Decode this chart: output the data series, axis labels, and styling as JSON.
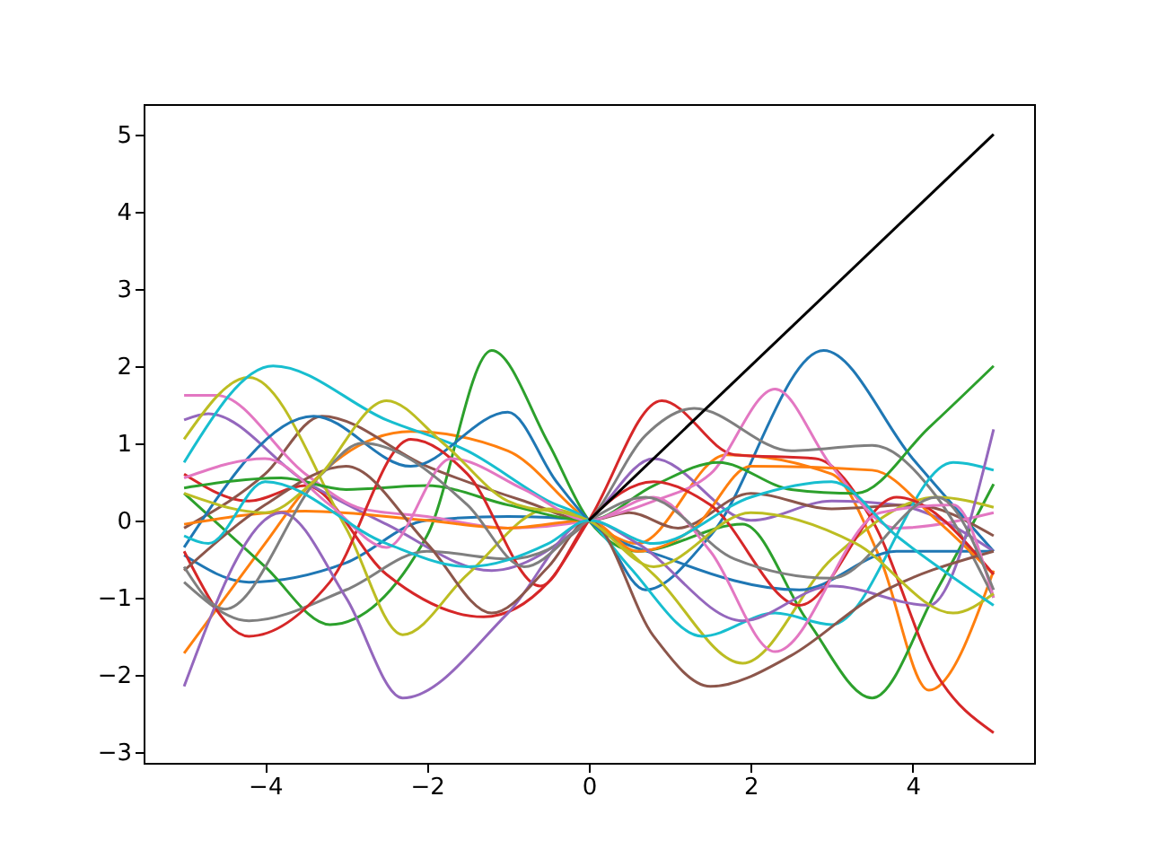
{
  "chart_data": {
    "type": "line",
    "xlim": [
      -5.5,
      5.5
    ],
    "ylim": [
      -3.14,
      5.39
    ],
    "xticks": [
      -4,
      -2,
      0,
      2,
      4
    ],
    "yticks": [
      -3,
      -2,
      -1,
      0,
      1,
      2,
      3,
      4,
      5
    ],
    "series": [
      {
        "color": "#1f77b4",
        "x": [
          -5,
          -4.2,
          -3,
          -2,
          -1,
          0,
          0.7,
          1.5,
          2.9,
          4,
          5
        ],
        "values": [
          -0.45,
          -0.8,
          -0.55,
          0,
          0.05,
          0,
          -0.9,
          -0.2,
          2.2,
          0.8,
          -0.4
        ]
      },
      {
        "color": "#ff7f0e",
        "x": [
          -5,
          -4,
          -3.5,
          -2.2,
          -1,
          0,
          0.6,
          1.7,
          3,
          3.6,
          4.2,
          5
        ],
        "values": [
          -1.72,
          -0.3,
          0.4,
          1.15,
          0.9,
          0,
          -0.3,
          0.85,
          0.6,
          -0.5,
          -2.2,
          -0.65
        ]
      },
      {
        "color": "#2ca02c",
        "x": [
          -5,
          -4,
          -3.2,
          -2,
          -1.2,
          -0.5,
          0,
          0.6,
          1.9,
          2.7,
          3.5,
          4.3,
          5
        ],
        "values": [
          0.35,
          -0.6,
          -1.35,
          -0.2,
          2.2,
          1,
          0,
          -0.4,
          -0.05,
          -1.3,
          -2.3,
          -0.9,
          0.47
        ]
      },
      {
        "color": "#d62728",
        "x": [
          -5,
          -4.2,
          -3.5,
          -2.5,
          -1.3,
          -0.5,
          0,
          0.9,
          1.8,
          2.8,
          3.5,
          4.3,
          5
        ],
        "values": [
          0.6,
          0.25,
          0.45,
          -0.7,
          -1.25,
          -0.8,
          0,
          1.55,
          0.85,
          0.8,
          0,
          -2,
          -2.75
        ]
      },
      {
        "color": "#9467bd",
        "x": [
          -5,
          -4.7,
          -3.5,
          -2.5,
          -1.2,
          0,
          0.8,
          2,
          3,
          3.8,
          5
        ],
        "values": [
          1.3,
          1.38,
          0.5,
          -0.05,
          -0.65,
          0,
          0.8,
          0,
          0.25,
          0.2,
          -0.4
        ]
      },
      {
        "color": "#8c564b",
        "x": [
          -5,
          -4,
          -3.3,
          -2,
          -0.8,
          0,
          0.5,
          1.1,
          2,
          3,
          4,
          5
        ],
        "values": [
          -0.1,
          0.6,
          1.35,
          0.7,
          0.25,
          0,
          0.1,
          -0.1,
          0.35,
          0.15,
          0.2,
          -0.2
        ]
      },
      {
        "color": "#e377c2",
        "x": [
          -5,
          -4.6,
          -3.5,
          -2.8,
          -2,
          -1,
          0,
          0.8,
          1.5,
          2.3,
          3,
          3.8,
          5
        ],
        "values": [
          1.62,
          1.62,
          0.6,
          0.15,
          0.05,
          -0.1,
          0,
          0.25,
          0.6,
          1.7,
          0.7,
          -0.1,
          0.1
        ]
      },
      {
        "color": "#7f7f7f",
        "x": [
          -5,
          -4.2,
          -3,
          -2,
          -1,
          0,
          0.7,
          1.3,
          2.5,
          3.5,
          4.3,
          5
        ],
        "values": [
          -0.8,
          -1.3,
          -0.9,
          -0.4,
          -0.5,
          0,
          1.1,
          1.45,
          0.9,
          0.97,
          0.3,
          -1
        ]
      },
      {
        "color": "#bcbd22",
        "x": [
          -5,
          -4.2,
          -3,
          -2.3,
          -1.5,
          -0.5,
          0,
          0.8,
          1.9,
          3,
          4.3,
          5
        ],
        "values": [
          1.05,
          1.85,
          -0.1,
          -1.48,
          -0.7,
          0.15,
          0,
          -0.7,
          -1.85,
          -0.5,
          0.3,
          0.17
        ]
      },
      {
        "color": "#17becf",
        "x": [
          -5,
          -3.9,
          -2.5,
          -1.5,
          -0.5,
          0,
          0.5,
          1.4,
          2.3,
          3,
          4.5,
          5
        ],
        "values": [
          0.75,
          2,
          1.3,
          0.9,
          0.25,
          0,
          -0.6,
          -1.5,
          -1.2,
          -1.35,
          0.75,
          0.65
        ]
      },
      {
        "color": "#1f77b4",
        "x": [
          -5,
          -3.4,
          -2.2,
          -1,
          -0.4,
          0,
          1,
          2.6,
          3.8,
          5
        ],
        "values": [
          -0.35,
          1.35,
          0.7,
          1.4,
          0.5,
          0,
          -0.5,
          -0.9,
          -0.4,
          -0.4
        ]
      },
      {
        "color": "#ff7f0e",
        "x": [
          -5,
          -3.5,
          -2,
          -1,
          0,
          0.6,
          1.3,
          2,
          3.5,
          4.3,
          5
        ],
        "values": [
          -0.05,
          0.12,
          0,
          -0.1,
          0,
          -0.4,
          -0.1,
          0.7,
          0.65,
          0,
          -0.7
        ]
      },
      {
        "color": "#2ca02c",
        "x": [
          -5,
          -3.8,
          -3,
          -2,
          -1,
          0,
          0.8,
          1.6,
          2.5,
          3.3,
          4.2,
          5
        ],
        "values": [
          0.42,
          0.55,
          0.4,
          0.45,
          0.2,
          0,
          0.45,
          0.75,
          0.4,
          0.35,
          1.2,
          2
        ]
      },
      {
        "color": "#d62728",
        "x": [
          -5,
          -4.2,
          -3.2,
          -2.2,
          -1.5,
          -0.6,
          0,
          0.8,
          1.5,
          2.6,
          3.8,
          5
        ],
        "values": [
          -0.4,
          -1.5,
          -0.8,
          1.05,
          0.6,
          -0.85,
          0,
          0.5,
          0.2,
          -1.1,
          0.3,
          -0.7
        ]
      },
      {
        "color": "#9467bd",
        "x": [
          -5,
          -3.8,
          -3,
          -2.3,
          -1,
          0,
          0.6,
          1.9,
          3,
          4.2,
          5
        ],
        "values": [
          -2.15,
          0.1,
          -1,
          -2.3,
          -1.2,
          0,
          -0.3,
          -1.3,
          -0.85,
          -1.1,
          1.18
        ]
      },
      {
        "color": "#8c564b",
        "x": [
          -5,
          -4,
          -3,
          -2,
          -1.2,
          -0.5,
          0,
          0.8,
          1.5,
          2.5,
          3.5,
          5
        ],
        "values": [
          -0.65,
          0.2,
          0.7,
          -0.3,
          -1.2,
          -0.6,
          0,
          -1.5,
          -2.15,
          -1.75,
          -1,
          -0.4
        ]
      },
      {
        "color": "#e377c2",
        "x": [
          -5,
          -4,
          -3.2,
          -2.5,
          -1.7,
          -0.8,
          0,
          0.8,
          1.5,
          2.3,
          3.6,
          4.5,
          5
        ],
        "values": [
          0.55,
          0.8,
          0.2,
          -0.35,
          0.8,
          0.4,
          0,
          0.3,
          -0.4,
          -1.7,
          0.1,
          0.2,
          -1
        ]
      },
      {
        "color": "#7f7f7f",
        "x": [
          -5,
          -4.5,
          -3.3,
          -2.8,
          -1.5,
          -0.8,
          0,
          0.7,
          1.8,
          3,
          4.3,
          5
        ],
        "values": [
          -0.6,
          -1.15,
          0.6,
          1,
          0.2,
          -0.6,
          0,
          0.3,
          -0.5,
          -0.75,
          0.3,
          -0.9
        ]
      },
      {
        "color": "#bcbd22",
        "x": [
          -5,
          -4,
          -3.4,
          -2.5,
          -1.8,
          -1,
          0,
          0.8,
          2,
          3.3,
          4.5,
          5
        ],
        "values": [
          0.35,
          0.1,
          0.5,
          1.55,
          1,
          0.25,
          0,
          -0.6,
          0.1,
          -0.3,
          -1.2,
          -0.95
        ]
      },
      {
        "color": "#17becf",
        "x": [
          -5,
          -4.7,
          -4,
          -2.5,
          -1.5,
          -0.5,
          0,
          0.8,
          2,
          3,
          3.8,
          5
        ],
        "values": [
          -0.2,
          -0.3,
          0.5,
          -0.3,
          -0.6,
          -0.3,
          0,
          -0.3,
          0.3,
          0.5,
          -0.2,
          -1.1
        ]
      },
      {
        "color": "#000000",
        "x": [
          0,
          5
        ],
        "values": [
          0,
          5
        ]
      }
    ]
  }
}
